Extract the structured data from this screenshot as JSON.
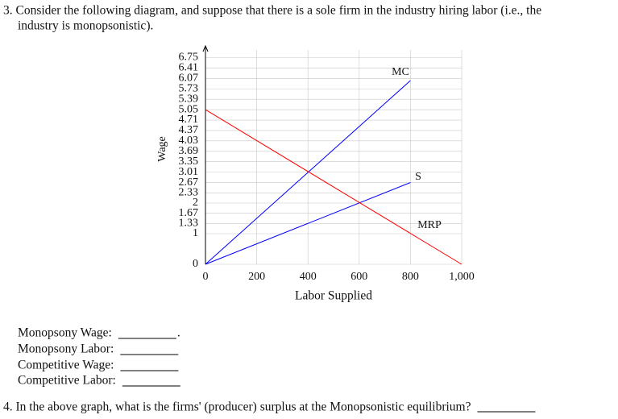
{
  "question3": {
    "lines": [
      "3. Consider the following diagram, and suppose that there is a sole firm in the industry hiring labor (i.e., the",
      "industry is monopsonistic)."
    ]
  },
  "chart_data": {
    "type": "line",
    "xlabel": "Labor Supplied",
    "ylabel": "Wage",
    "xlim": [
      0,
      1000
    ],
    "ylim": [
      0,
      7
    ],
    "xticks": [
      0,
      200,
      400,
      600,
      800,
      {
        "value": 1000,
        "label": "1,000"
      }
    ],
    "yticks": [
      0,
      1,
      1.33,
      1.67,
      2,
      2.33,
      2.67,
      3.01,
      3.35,
      3.69,
      4.03,
      4.37,
      4.71,
      5.05,
      5.39,
      5.73,
      6.07,
      6.41,
      6.75
    ],
    "grid": true,
    "series": [
      {
        "name": "MC",
        "color": "#0000ff",
        "x": [
          0,
          800
        ],
        "values": [
          0,
          6
        ]
      },
      {
        "name": "S",
        "color": "#0000ff",
        "x": [
          0,
          800
        ],
        "values": [
          0,
          2.67
        ]
      },
      {
        "name": "MRP",
        "color": "#ff0000",
        "x": [
          0,
          1000
        ],
        "values": [
          5.05,
          0
        ]
      }
    ]
  },
  "answers": [
    {
      "label": "Monopsony Wage:",
      "end": "."
    },
    {
      "label": "Monopsony Labor:"
    },
    {
      "label": "Competitive Wage:"
    },
    {
      "label": "Competitive Labor:"
    }
  ],
  "question4": {
    "text": "4. In the above graph, what is the firms' (producer) surplus at the Monopsonistic equilibrium?"
  }
}
